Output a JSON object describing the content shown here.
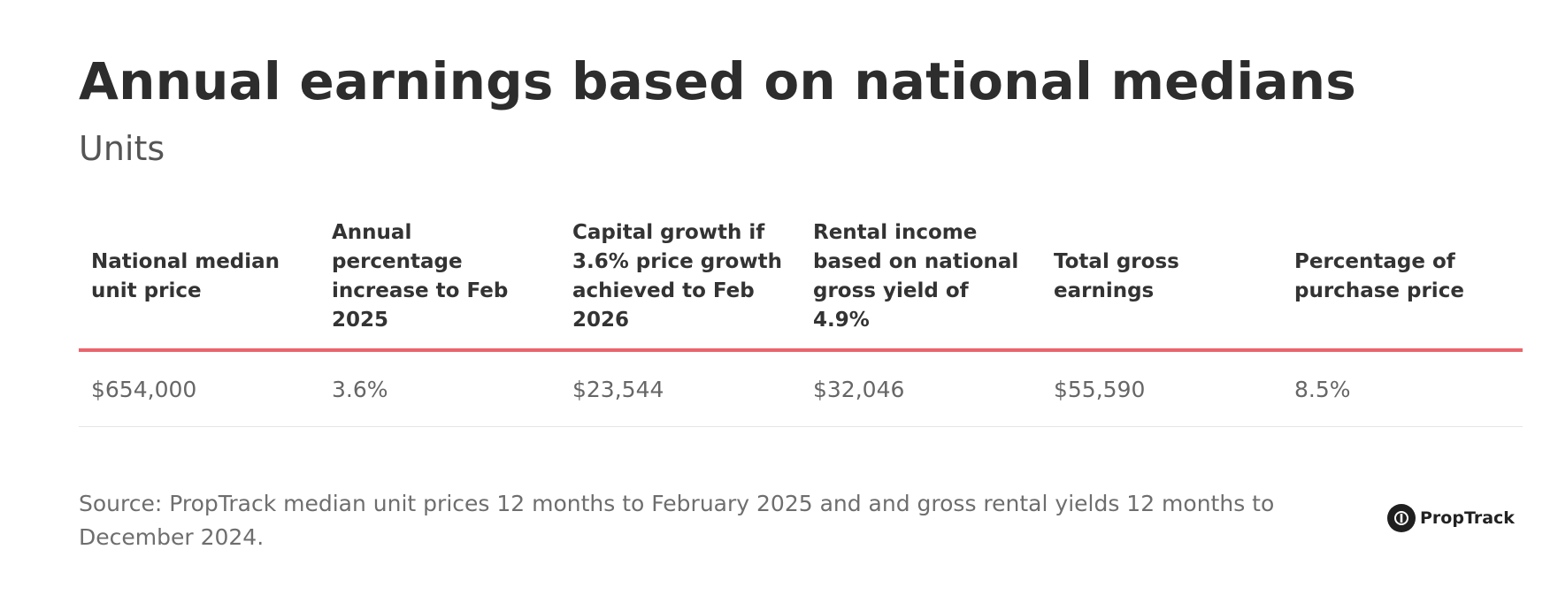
{
  "chart_data": {
    "type": "table",
    "title": "Annual earnings based on national medians",
    "subtitle": "Units",
    "columns": [
      "National median unit price",
      "Annual percentage increase to Feb 2025",
      "Capital growth if 3.6% price growth achieved to Feb 2026",
      "Rental income based on national gross yield of 4.9%",
      "Total gross earnings",
      "Percentage of purchase price"
    ],
    "rows": [
      [
        "$654,000",
        "3.6%",
        "$23,544",
        "$32,046",
        "$55,590",
        "8.5%"
      ]
    ],
    "source": "Source: PropTrack median unit prices 12 months to February 2025 and and gross rental yields 12 months to December 2024.",
    "logo_text": "PropTrack",
    "colors": {
      "header_rule": "#e9656b",
      "row_rule": "#e6e6e6",
      "title": "#2d2d2d",
      "cell_text": "#666666"
    }
  }
}
